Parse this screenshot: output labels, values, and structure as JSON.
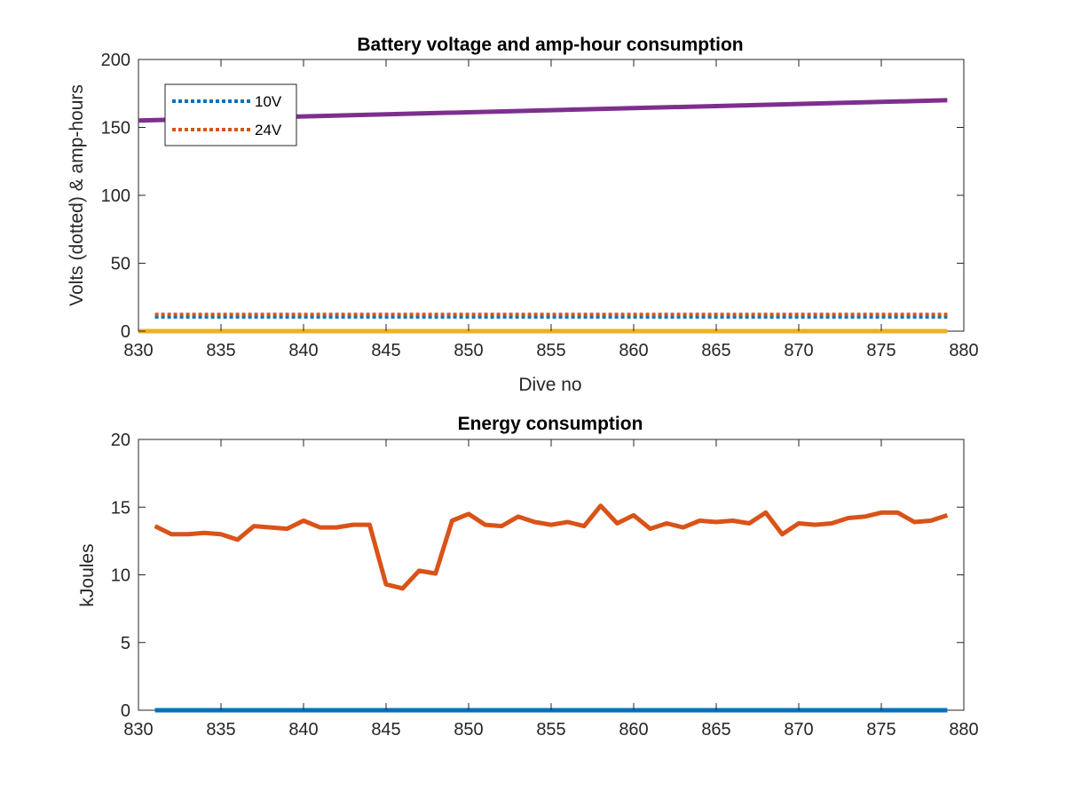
{
  "chart_data": [
    {
      "type": "line",
      "title": "Battery voltage and amp-hour consumption",
      "xlabel": "Dive no",
      "ylabel": "Volts (dotted) & amp-hours",
      "xlim": [
        830,
        880
      ],
      "ylim": [
        0,
        200
      ],
      "xticks": [
        "830",
        "835",
        "840",
        "845",
        "850",
        "855",
        "860",
        "865",
        "870",
        "875",
        "880"
      ],
      "yticks": [
        "0",
        "50",
        "100",
        "150",
        "200"
      ],
      "grid": false,
      "legend_position": "top-left",
      "series": [
        {
          "name": "10V",
          "style": "dotted",
          "color": "#0072BD",
          "x": [
            831,
            879
          ],
          "y": [
            10.5,
            10.5
          ]
        },
        {
          "name": "24V",
          "style": "dotted",
          "color": "#D95319",
          "x": [
            831,
            879
          ],
          "y": [
            12.3,
            12.3
          ]
        },
        {
          "style": "solid",
          "color": "#7E2F8E",
          "x": [
            830,
            879
          ],
          "y": [
            155,
            170
          ]
        },
        {
          "style": "solid",
          "color": "#EDB120",
          "x": [
            830,
            879
          ],
          "y": [
            0,
            0
          ]
        }
      ]
    },
    {
      "type": "line",
      "title": "Energy consumption",
      "xlabel": "",
      "ylabel": "kJoules",
      "xlim": [
        830,
        880
      ],
      "ylim": [
        0,
        20
      ],
      "xticks": [
        "830",
        "835",
        "840",
        "845",
        "850",
        "855",
        "860",
        "865",
        "870",
        "875",
        "880"
      ],
      "yticks": [
        "0",
        "5",
        "10",
        "15",
        "20"
      ],
      "grid": false,
      "series": [
        {
          "style": "solid",
          "color": "#0072BD",
          "x": [
            831,
            879
          ],
          "y": [
            0,
            0
          ]
        },
        {
          "style": "solid",
          "color": "#D95319",
          "x": [
            831,
            832,
            833,
            834,
            835,
            836,
            837,
            838,
            839,
            840,
            841,
            842,
            843,
            844,
            845,
            846,
            847,
            848,
            849,
            850,
            851,
            852,
            853,
            854,
            855,
            856,
            857,
            858,
            859,
            860,
            861,
            862,
            863,
            864,
            865,
            866,
            867,
            868,
            869,
            870,
            871,
            872,
            873,
            874,
            875,
            876,
            877,
            878,
            879
          ],
          "y": [
            13.6,
            13.0,
            13.0,
            13.1,
            13.0,
            12.6,
            13.6,
            13.5,
            13.4,
            14.0,
            13.5,
            13.5,
            13.7,
            13.7,
            9.3,
            9.0,
            10.3,
            10.1,
            14.0,
            14.5,
            13.7,
            13.6,
            14.3,
            13.9,
            13.7,
            13.9,
            13.6,
            15.1,
            13.8,
            14.4,
            13.4,
            13.8,
            13.5,
            14.0,
            13.9,
            14.0,
            13.8,
            14.6,
            13.0,
            13.8,
            13.7,
            13.8,
            14.2,
            14.3,
            14.6,
            14.6,
            13.9,
            14.0,
            14.4
          ]
        }
      ]
    }
  ]
}
